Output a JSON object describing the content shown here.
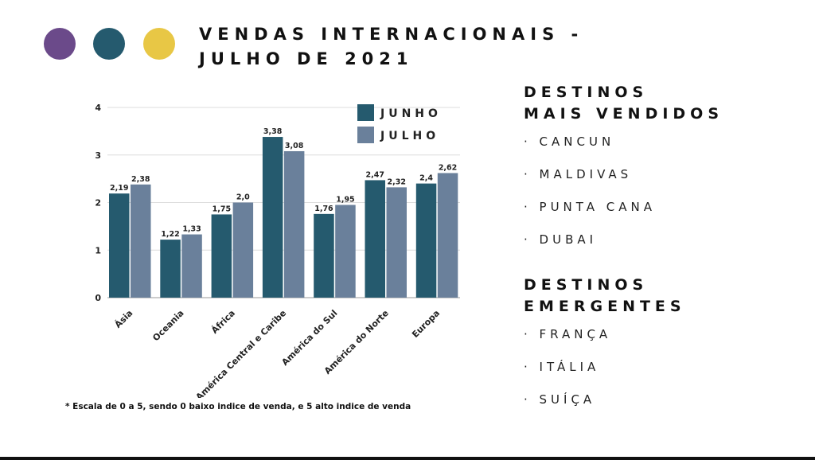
{
  "header": {
    "title_line1": "VENDAS INTERNACIONAIS -",
    "title_line2": "JULHO DE 2021"
  },
  "dots": [
    "#6b4a8a",
    "#255a6e",
    "#e8c745"
  ],
  "colors": {
    "junho": "#255a6e",
    "julho": "#6a809b"
  },
  "chart_data": {
    "type": "bar",
    "categories": [
      "Ásia",
      "Oceania",
      "África",
      "América Central e Caribe",
      "América do Sul",
      "América do Norte",
      "Europa"
    ],
    "series": [
      {
        "name": "JUNHO",
        "values": [
          2.19,
          1.22,
          1.75,
          3.38,
          1.76,
          2.47,
          2.4
        ],
        "labels": [
          "2,19",
          "1,22",
          "1,75",
          "3,38",
          "1,76",
          "2,47",
          "2,4"
        ]
      },
      {
        "name": "JULHO",
        "values": [
          2.38,
          1.33,
          2.0,
          3.08,
          1.95,
          2.32,
          2.62
        ],
        "labels": [
          "2,38",
          "1,33",
          "2,0",
          "3,08",
          "1,95",
          "2,32",
          "2,62"
        ]
      }
    ],
    "yticks": [
      "0",
      "1",
      "2",
      "3",
      "4"
    ],
    "ylim": [
      0,
      4
    ],
    "grid": true,
    "legend_position": "top-right"
  },
  "footnote": "* Escala de 0 a 5, sendo 0 baixo indice de venda, e 5 alto indice de venda",
  "sidebar": {
    "section1": {
      "title_line1": "DESTINOS",
      "title_line2": "MAIS VENDIDOS",
      "items": [
        "· CANCUN",
        "· MALDIVAS",
        "· PUNTA CANA",
        "· DUBAI"
      ]
    },
    "section2": {
      "title_line1": "DESTINOS",
      "title_line2": "EMERGENTES",
      "items": [
        "· FRANÇA",
        "· ITÁLIA",
        "· SUÍÇA"
      ]
    }
  }
}
